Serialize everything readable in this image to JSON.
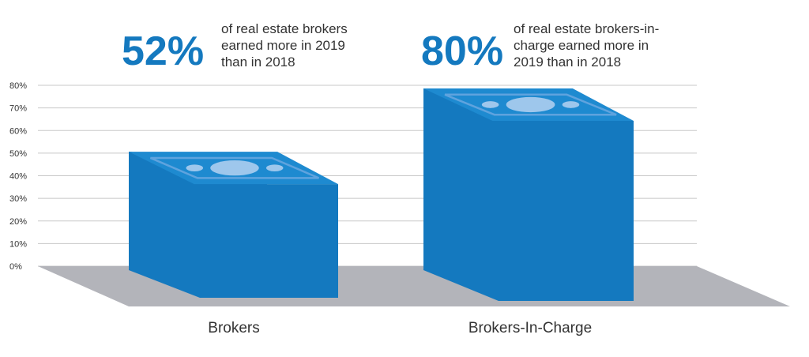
{
  "chart_data": {
    "type": "bar",
    "categories": [
      "Brokers",
      "Brokers-In-Charge"
    ],
    "series": [
      {
        "values": [
          52,
          80
        ]
      }
    ],
    "ylim": [
      0,
      80
    ],
    "yticks": [
      "0%",
      "10%",
      "20%",
      "30%",
      "40%",
      "50%",
      "60%",
      "70%",
      "80%"
    ],
    "grid": true,
    "annotations": [
      {
        "value": "52%",
        "lines": [
          "of real estate brokers",
          "earned more in 2019",
          "than in 2018"
        ]
      },
      {
        "value": "80%",
        "lines": [
          "of real estate brokers-in-",
          "charge earned more in",
          "2019 than in 2018"
        ]
      }
    ],
    "colors": {
      "bar_front": "#1479BF",
      "bar_top_panel": "#1E8AD0",
      "bar_top_bill": "#5FA3DE",
      "bar_top_oval": "#9EC7EC",
      "accent_text": "#1479BF",
      "floor": "#B3B4BA",
      "grid": "#C8C8C8",
      "text": "#333333"
    }
  }
}
